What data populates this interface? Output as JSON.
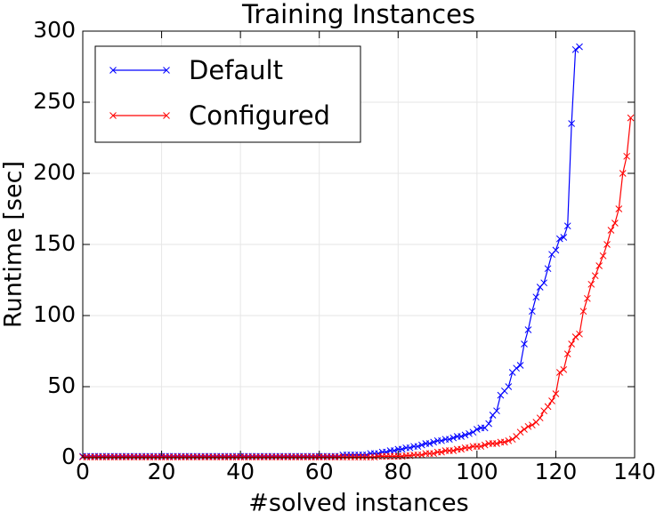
{
  "chart_data": {
    "type": "line",
    "title": "Training Instances",
    "xlabel": "#solved instances",
    "ylabel": "Runtime [sec]",
    "x": [
      0,
      1,
      2,
      3,
      4,
      5,
      6,
      7,
      8,
      9,
      10,
      11,
      12,
      13,
      14,
      15,
      16,
      17,
      18,
      19,
      20,
      21,
      22,
      23,
      24,
      25,
      26,
      27,
      28,
      29,
      30,
      31,
      32,
      33,
      34,
      35,
      36,
      37,
      38,
      39,
      40,
      41,
      42,
      43,
      44,
      45,
      46,
      47,
      48,
      49,
      50,
      51,
      52,
      53,
      54,
      55,
      56,
      57,
      58,
      59,
      60,
      61,
      62,
      63,
      64,
      65,
      66,
      67,
      68,
      69,
      70,
      71,
      72,
      73,
      74,
      75,
      76,
      77,
      78,
      79,
      80,
      81,
      82,
      83,
      84,
      85,
      86,
      87,
      88,
      89,
      90,
      91,
      92,
      93,
      94,
      95,
      96,
      97,
      98,
      99,
      100,
      101,
      102,
      103,
      104,
      105,
      106,
      107,
      108,
      109,
      110,
      111,
      112,
      113,
      114,
      115,
      116,
      117,
      118,
      119,
      120,
      121,
      122,
      123,
      124,
      125,
      126,
      127,
      128,
      129,
      130,
      131,
      132,
      133,
      134,
      135,
      136,
      137,
      138,
      139
    ],
    "series": [
      {
        "name": "Default",
        "color": "#0000ff",
        "values": [
          1,
          1,
          1,
          1,
          1,
          1,
          1,
          1,
          1,
          1,
          1,
          1,
          1,
          1,
          1,
          1,
          1,
          1,
          1,
          1,
          1,
          1,
          1,
          1,
          1,
          1,
          1,
          1,
          1,
          1,
          1,
          1,
          1,
          1,
          1,
          1,
          1,
          1,
          1,
          1,
          1,
          1,
          1,
          1,
          1,
          1,
          1,
          1,
          1,
          1,
          1,
          1,
          1,
          1,
          1,
          1,
          1,
          1,
          1,
          1,
          1,
          1,
          1,
          1,
          1,
          1,
          2,
          2,
          2,
          2,
          2,
          2,
          2,
          3,
          3,
          3,
          4,
          4,
          5,
          5,
          6,
          6,
          7,
          7,
          8,
          8,
          9,
          10,
          10,
          11,
          12,
          12,
          13,
          13,
          14,
          15,
          15,
          16,
          17,
          18,
          20,
          21,
          21,
          24,
          30,
          33,
          44,
          47,
          50,
          60,
          63,
          65,
          80,
          90,
          103,
          113,
          120,
          123,
          133,
          143,
          146,
          154,
          155,
          163,
          235,
          287,
          289,
          null,
          null,
          null,
          null,
          null,
          null,
          null,
          null,
          null,
          null,
          null,
          null,
          null
        ]
      },
      {
        "name": "Configured",
        "color": "#ff0000",
        "values": [
          0.5,
          0.5,
          0.5,
          0.5,
          0.5,
          0.5,
          0.5,
          0.5,
          0.5,
          0.5,
          0.5,
          0.5,
          0.5,
          0.5,
          0.5,
          0.5,
          0.5,
          0.5,
          0.5,
          0.5,
          0.5,
          0.5,
          0.5,
          0.5,
          0.5,
          0.5,
          0.5,
          0.5,
          0.5,
          0.5,
          0.5,
          0.5,
          0.5,
          0.5,
          0.5,
          0.5,
          0.5,
          0.5,
          0.5,
          0.5,
          0.5,
          0.5,
          0.5,
          0.5,
          0.5,
          0.5,
          0.5,
          0.5,
          0.5,
          0.5,
          0.5,
          0.5,
          0.5,
          0.5,
          0.5,
          0.5,
          0.5,
          0.5,
          0.5,
          0.5,
          0.5,
          0.5,
          0.5,
          0.5,
          0.5,
          0.5,
          0.5,
          0.5,
          0.5,
          0.5,
          0.5,
          0.5,
          0.5,
          0.5,
          0.5,
          1,
          1,
          1,
          1,
          1,
          1,
          1,
          1.5,
          1.5,
          2,
          2,
          2,
          3,
          3,
          3,
          4,
          4,
          5,
          5,
          5,
          6,
          6,
          7,
          7,
          8,
          8,
          8,
          9,
          10,
          10,
          10,
          11,
          11,
          12,
          13,
          15,
          18,
          20,
          22,
          23,
          25,
          28,
          33,
          36,
          40,
          45,
          60,
          62,
          73,
          80,
          85,
          87,
          103,
          112,
          122,
          128,
          135,
          142,
          150,
          160,
          165,
          175,
          200,
          212,
          239
        ]
      }
    ],
    "xlim": [
      0,
      140
    ],
    "ylim": [
      0,
      300
    ],
    "xticks": [
      0,
      20,
      40,
      60,
      80,
      100,
      120,
      140
    ],
    "yticks": [
      0,
      50,
      100,
      150,
      200,
      250,
      300
    ],
    "grid": true,
    "legend": "upper left"
  }
}
